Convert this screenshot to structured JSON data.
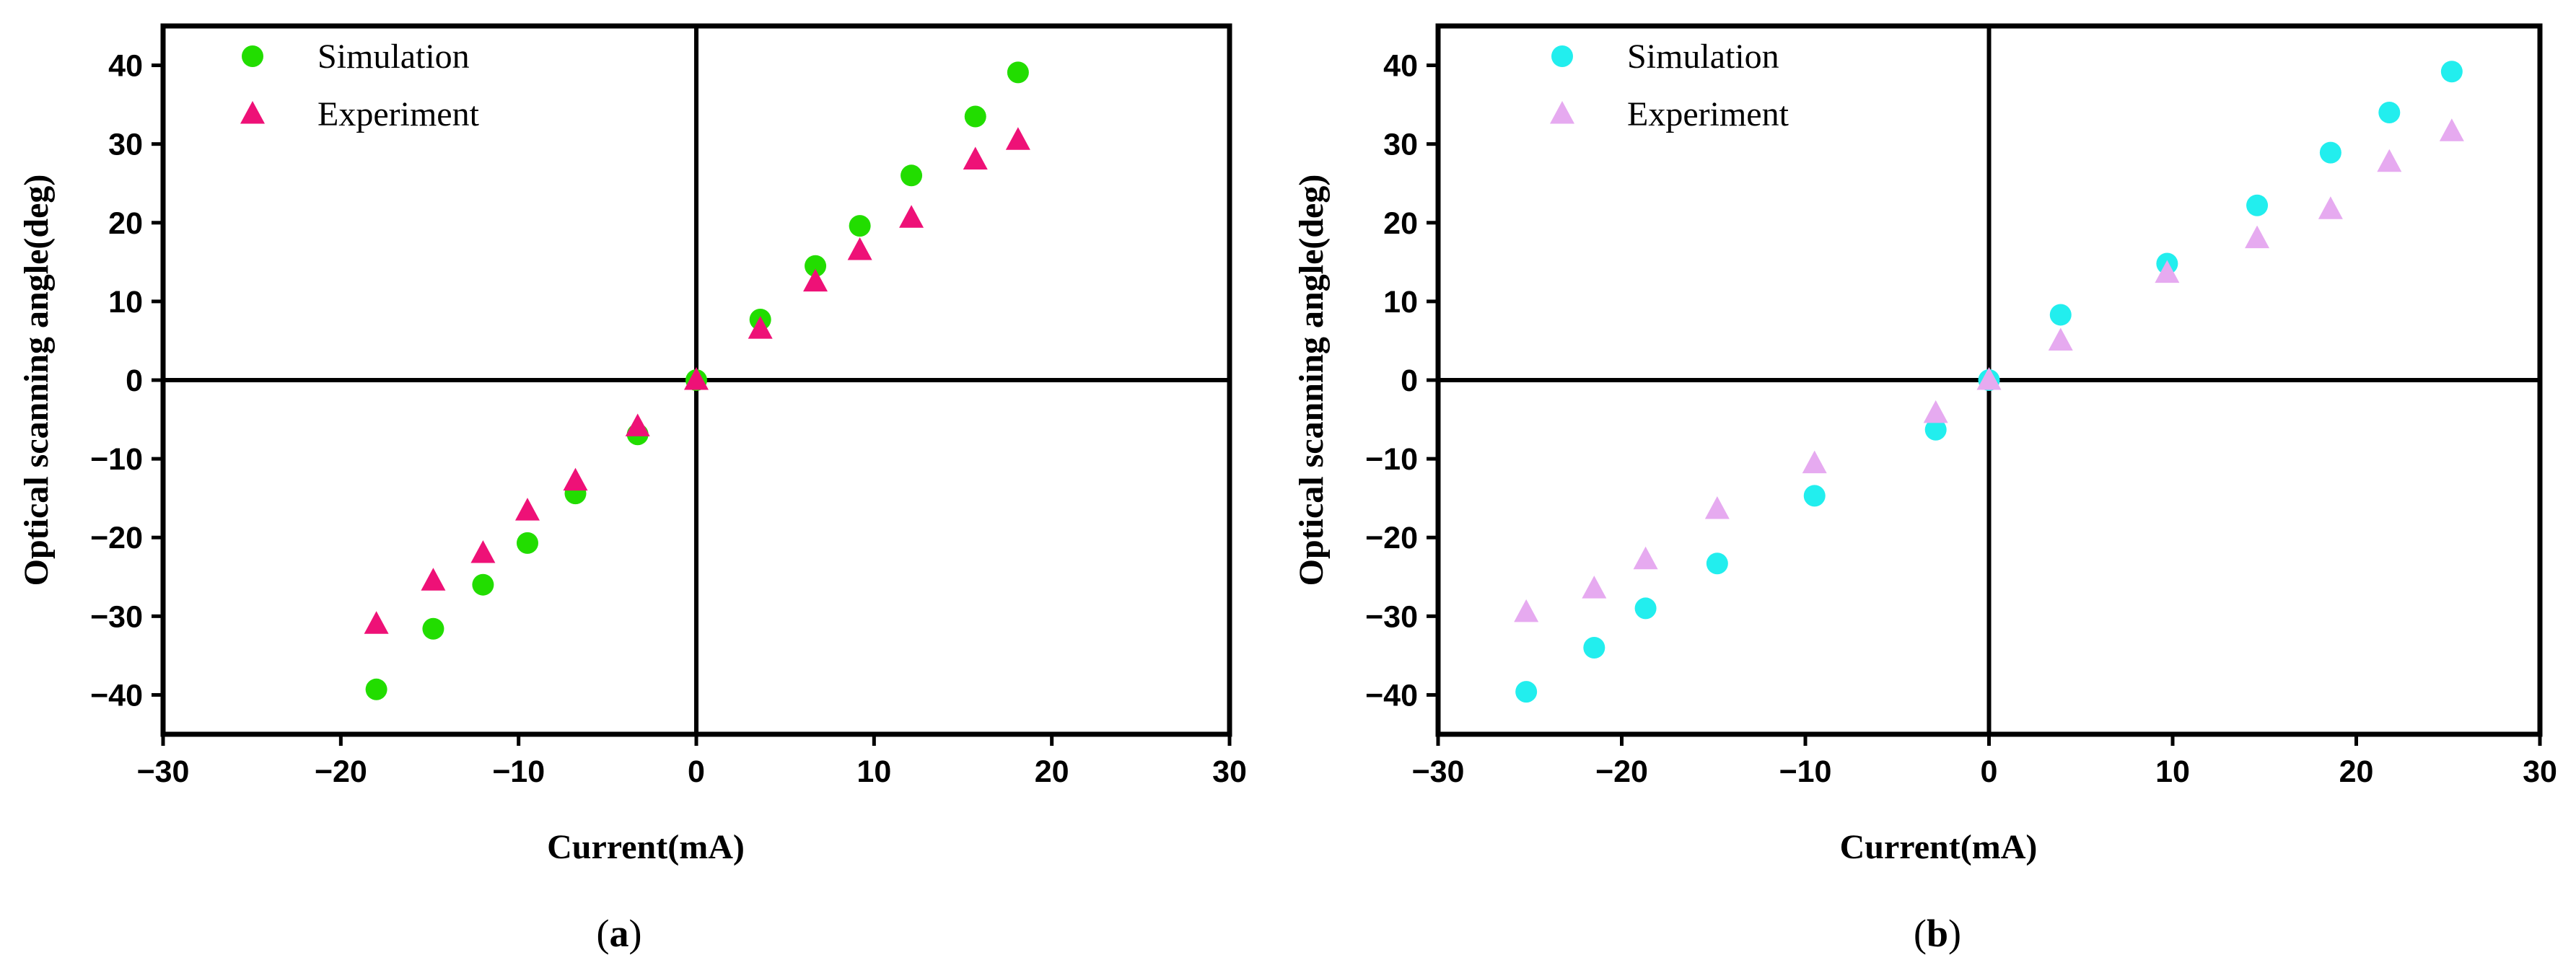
{
  "chart_data": [
    {
      "type": "scatter",
      "caption_letter": "a",
      "xlabel": "Current(mA)",
      "ylabel": "Optical scanning angle(deg)",
      "xlim": [
        -30,
        30
      ],
      "ylim": [
        -45,
        45
      ],
      "xticks": [
        -30,
        -20,
        -10,
        0,
        10,
        20,
        30
      ],
      "yticks": [
        -40,
        -30,
        -20,
        -10,
        0,
        10,
        20,
        30,
        40
      ],
      "xtick_labels": [
        "−30",
        "−20",
        "−10",
        "0",
        "10",
        "20",
        "30"
      ],
      "ytick_labels": [
        "−40",
        "−30",
        "−20",
        "−10",
        "0",
        "10",
        "20",
        "30",
        "40"
      ],
      "legend_position": "top-left",
      "series": [
        {
          "name": "Simulation",
          "marker": "circle",
          "color": "#22dd00",
          "x": [
            -18,
            -14.8,
            -12,
            -9.5,
            -6.8,
            -3.3,
            0,
            3.6,
            6.7,
            9.2,
            12.1,
            15.7,
            18.1
          ],
          "y": [
            -39.3,
            -31.6,
            -26,
            -20.7,
            -14.4,
            -6.9,
            0,
            7.7,
            14.5,
            19.6,
            26,
            33.5,
            39.1
          ]
        },
        {
          "name": "Experiment",
          "marker": "triangle",
          "color": "#ee1177",
          "x": [
            -18,
            -14.8,
            -12,
            -9.5,
            -6.8,
            -3.3,
            0,
            3.6,
            6.7,
            9.2,
            12.1,
            15.7,
            18.1
          ],
          "y": [
            -31,
            -25.5,
            -22,
            -16.6,
            -12.8,
            -5.9,
            0,
            6.5,
            12.5,
            16.5,
            20.6,
            28,
            30.5
          ]
        }
      ]
    },
    {
      "type": "scatter",
      "caption_letter": "b",
      "xlabel": "Current(mA)",
      "ylabel": "Optical scanning angle(deg)",
      "xlim": [
        -30,
        30
      ],
      "ylim": [
        -45,
        45
      ],
      "xticks": [
        -30,
        -20,
        -10,
        0,
        10,
        20,
        30
      ],
      "yticks": [
        -40,
        -30,
        -20,
        -10,
        0,
        10,
        20,
        30,
        40
      ],
      "xtick_labels": [
        "−30",
        "−20",
        "−10",
        "0",
        "10",
        "20",
        "30"
      ],
      "ytick_labels": [
        "−40",
        "−30",
        "−20",
        "−10",
        "0",
        "10",
        "20",
        "30",
        "40"
      ],
      "legend_position": "top-left",
      "series": [
        {
          "name": "Simulation",
          "marker": "circle",
          "color": "#22eeee",
          "x": [
            -25.2,
            -21.5,
            -18.7,
            -14.8,
            -9.5,
            -2.9,
            0,
            3.9,
            9.7,
            14.6,
            18.6,
            21.8,
            25.2
          ],
          "y": [
            -39.6,
            -34,
            -29,
            -23.3,
            -14.7,
            -6.3,
            0,
            8.3,
            14.8,
            22.2,
            28.9,
            34,
            39.2
          ]
        },
        {
          "name": "Experiment",
          "marker": "triangle",
          "color": "#e6aaf0",
          "x": [
            -25.2,
            -21.5,
            -18.7,
            -14.8,
            -9.5,
            -2.9,
            0,
            3.9,
            9.7,
            14.6,
            18.6,
            21.8,
            25.2
          ],
          "y": [
            -29.5,
            -26.5,
            -22.8,
            -16.4,
            -10.6,
            -4.2,
            0,
            5,
            13.6,
            18,
            21.7,
            27.7,
            31.6
          ]
        }
      ]
    }
  ]
}
